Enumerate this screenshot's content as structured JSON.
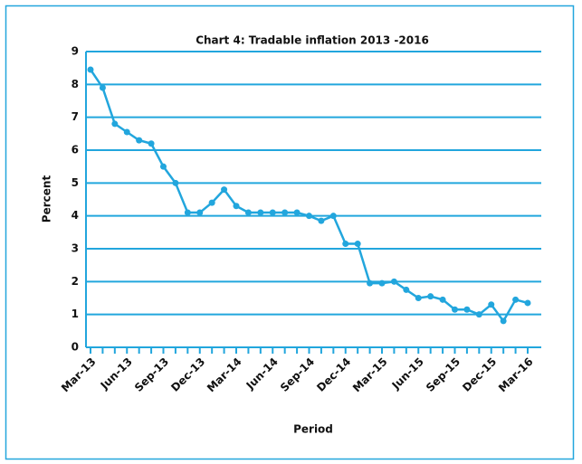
{
  "chart_data": {
    "type": "line",
    "title": "Chart 4: Tradable inflation 2013 -2016",
    "x_label": "Period",
    "y_label": "Percent",
    "categories": [
      "Mar-13",
      null,
      null,
      "Jun-13",
      null,
      null,
      "Sep-13",
      null,
      null,
      "Dec-13",
      null,
      null,
      "Mar-14",
      null,
      null,
      "Jun-14",
      null,
      null,
      "Sep-14",
      null,
      null,
      "Dec-14",
      null,
      null,
      "Mar-15",
      null,
      null,
      "Jun-15",
      null,
      null,
      "Sep-15",
      null,
      null,
      "Dec-15",
      null,
      null,
      "Mar-16"
    ],
    "series": [
      {
        "name": "Tradable inflation",
        "color": "#22a6dd",
        "values": [
          8.45,
          7.9,
          6.8,
          6.55,
          6.3,
          6.2,
          5.5,
          5.0,
          4.1,
          4.1,
          4.4,
          4.8,
          4.3,
          4.1,
          4.1,
          4.1,
          4.1,
          4.1,
          4.0,
          3.85,
          4.0,
          3.15,
          3.15,
          1.95,
          1.95,
          2.0,
          1.75,
          1.5,
          1.55,
          1.45,
          1.15,
          1.15,
          1.0,
          1.3,
          0.8,
          1.45,
          1.35
        ]
      }
    ],
    "ylim": [
      0,
      9
    ],
    "yticks": [
      0,
      1,
      2,
      3,
      4,
      5,
      6,
      7,
      8,
      9
    ],
    "grid": true
  }
}
